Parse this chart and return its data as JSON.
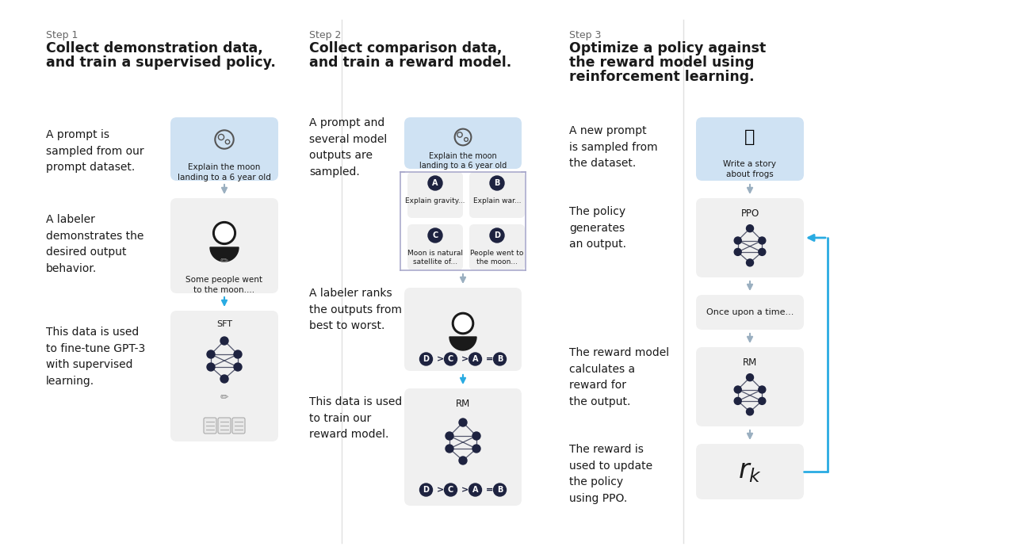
{
  "bg_color": "#ffffff",
  "panel_bg": "#f0f0f0",
  "blue_panel_bg": "#cfe2f3",
  "arrow_color": "#9aafc0",
  "blue_arrow_color": "#29abe2",
  "text_dark": "#1a1a1a",
  "text_gray": "#666666",
  "node_dark": "#1e2340",
  "sep_color": "#e0e0e0",
  "step1": {
    "step_label": "Step 1",
    "title_line1": "Collect demonstration data,",
    "title_line2": "and train a supervised policy.",
    "sub1_text": "A prompt is\nsampled from our\nprompt dataset.",
    "sub1_box_text": "Explain the moon\nlanding to a 6 year old",
    "sub2_text": "A labeler\ndemonstrates the\ndesired output\nbehavior.",
    "sub2_box_text": "Some people went\nto the moon....",
    "sub3_text": "This data is used\nto fine-tune GPT-3\nwith supervised\nlearning.",
    "sub3_label": "SFT"
  },
  "step2": {
    "step_label": "Step 2",
    "title_line1": "Collect comparison data,",
    "title_line2": "and train a reward model.",
    "sub1_text": "A prompt and\nseveral model\noutputs are\nsampled.",
    "sub1_box_text": "Explain the moon\nlanding to a 6 year old",
    "outputs": [
      {
        "label": "A",
        "text": "Explain gravity..."
      },
      {
        "label": "B",
        "text": "Explain war..."
      },
      {
        "label": "C",
        "text": "Moon is natural\nsatellite of..."
      },
      {
        "label": "D",
        "text": "People went to\nthe moon..."
      }
    ],
    "sub2_text": "A labeler ranks\nthe outputs from\nbest to worst.",
    "ranking": "D > C > A = B",
    "sub3_text": "This data is used\nto train our\nreward model.",
    "sub3_label": "RM",
    "sub3_ranking": "D > C > A = B"
  },
  "step3": {
    "step_label": "Step 3",
    "title_line1": "Optimize a policy against",
    "title_line2": "the reward model using",
    "title_line3": "reinforcement learning.",
    "sub1_text": "A new prompt\nis sampled from\nthe dataset.",
    "sub1_box_text": "Write a story\nabout frogs",
    "sub2_text": "The policy\ngenerates\nan output.",
    "sub2_label": "PPO",
    "sub2_output": "Once upon a time...",
    "sub3_text": "The reward model\ncalculates a\nreward for\nthe output.",
    "sub3_label": "RM",
    "sub4_text": "The reward is\nused to update\nthe policy\nusing PPO."
  }
}
